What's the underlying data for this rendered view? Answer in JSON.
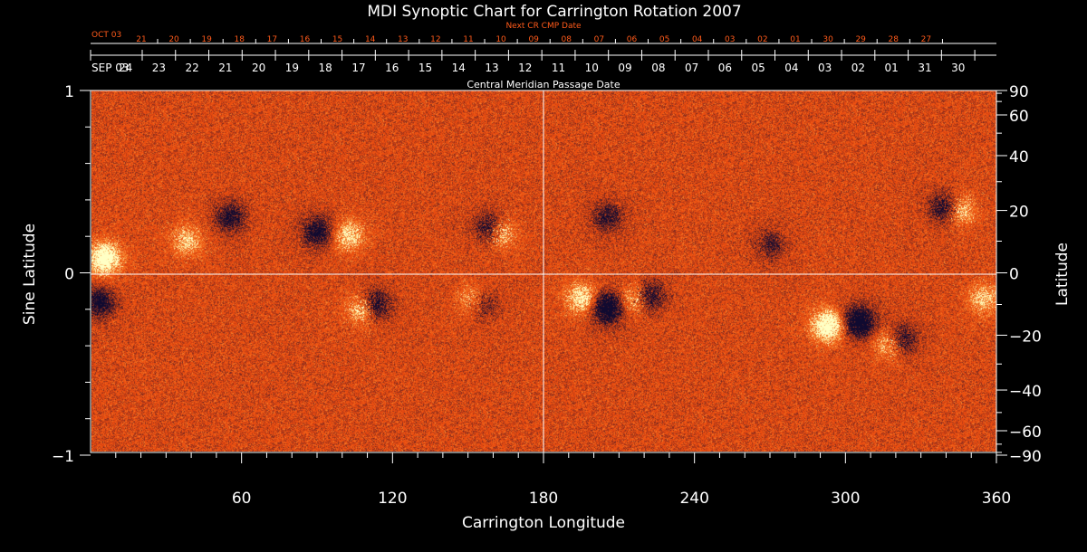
{
  "chart_data": {
    "type": "heatmap",
    "title": "MDI Synoptic Chart for Carrington Rotation 2007",
    "xlabel": "Carrington Longitude",
    "ylabel": "Sine Latitude",
    "ylabel_right": "Latitude",
    "top_axis_label": "Central Meridian Passage Date",
    "next_axis_label": "Next CR CMP Date",
    "xlim": [
      0,
      360
    ],
    "ylim": [
      -1,
      1
    ],
    "x_ticks": [
      "60",
      "120",
      "180",
      "240",
      "300",
      "360"
    ],
    "x_tick_values": [
      60,
      120,
      180,
      240,
      300,
      360
    ],
    "y_ticks": [
      "1",
      "0",
      "−1"
    ],
    "y_tick_values": [
      1,
      0,
      -1
    ],
    "lat_ticks": [
      "90",
      "60",
      "40",
      "20",
      "0",
      "−20",
      "−40",
      "−60",
      "−90"
    ],
    "lat_tick_values": [
      90,
      60,
      40,
      20,
      0,
      -20,
      -40,
      -60,
      -90
    ],
    "cmp_first_label": "SEP 03",
    "cmp_dates": [
      "24",
      "23",
      "22",
      "21",
      "20",
      "19",
      "18",
      "17",
      "16",
      "15",
      "14",
      "13",
      "12",
      "11",
      "10",
      "09",
      "08",
      "07",
      "06",
      "05",
      "04",
      "03",
      "02",
      "01",
      "31",
      "30"
    ],
    "next_first_label": "OCT 03",
    "next_dates": [
      "21",
      "20",
      "19",
      "18",
      "17",
      "16",
      "15",
      "14",
      "13",
      "12",
      "11",
      "10",
      "09",
      "08",
      "07",
      "06",
      "05",
      "04",
      "03",
      "02",
      "01",
      "30",
      "29",
      "28",
      "27"
    ],
    "colors": {
      "background": "#000000",
      "field_base": "#e84a10",
      "positive": "#ffffc0",
      "negative": "#100a30",
      "axis": "#ffffff",
      "next_axis": "#ff5a1a",
      "grid": "#ffffff"
    },
    "active_regions": [
      {
        "lon": 5,
        "sinlat": 0.07,
        "polarity": "positive",
        "strength": 1.0
      },
      {
        "lon": 3,
        "sinlat": -0.17,
        "polarity": "negative",
        "strength": 0.7
      },
      {
        "lon": 38,
        "sinlat": 0.17,
        "polarity": "positive",
        "strength": 0.5
      },
      {
        "lon": 55,
        "sinlat": 0.3,
        "polarity": "negative",
        "strength": 0.6
      },
      {
        "lon": 90,
        "sinlat": 0.22,
        "polarity": "negative",
        "strength": 0.7
      },
      {
        "lon": 102,
        "sinlat": 0.2,
        "polarity": "positive",
        "strength": 0.6
      },
      {
        "lon": 112,
        "sinlat": -0.19,
        "polarity": "negative",
        "strength": 0.9
      },
      {
        "lon": 108,
        "sinlat": -0.21,
        "polarity": "positive",
        "strength": 0.8
      },
      {
        "lon": 159,
        "sinlat": 0.24,
        "polarity": "negative",
        "strength": 0.9
      },
      {
        "lon": 162,
        "sinlat": 0.22,
        "polarity": "positive",
        "strength": 0.8
      },
      {
        "lon": 152,
        "sinlat": -0.16,
        "polarity": "positive",
        "strength": 0.6
      },
      {
        "lon": 155,
        "sinlat": -0.18,
        "polarity": "negative",
        "strength": 0.6
      },
      {
        "lon": 205,
        "sinlat": -0.2,
        "polarity": "negative",
        "strength": 1.0
      },
      {
        "lon": 195,
        "sinlat": -0.15,
        "polarity": "positive",
        "strength": 0.7
      },
      {
        "lon": 221,
        "sinlat": -0.14,
        "polarity": "negative",
        "strength": 0.9
      },
      {
        "lon": 217,
        "sinlat": -0.15,
        "polarity": "positive",
        "strength": 0.8
      },
      {
        "lon": 205,
        "sinlat": 0.3,
        "polarity": "negative",
        "strength": 0.5
      },
      {
        "lon": 293,
        "sinlat": -0.3,
        "polarity": "positive",
        "strength": 1.0
      },
      {
        "lon": 305,
        "sinlat": -0.28,
        "polarity": "negative",
        "strength": 1.0
      },
      {
        "lon": 322,
        "sinlat": -0.38,
        "polarity": "negative",
        "strength": 0.8
      },
      {
        "lon": 318,
        "sinlat": -0.4,
        "polarity": "positive",
        "strength": 0.7
      },
      {
        "lon": 340,
        "sinlat": 0.35,
        "polarity": "negative",
        "strength": 0.8
      },
      {
        "lon": 345,
        "sinlat": 0.34,
        "polarity": "positive",
        "strength": 0.7
      },
      {
        "lon": 270,
        "sinlat": 0.15,
        "polarity": "negative",
        "strength": 0.4
      },
      {
        "lon": 355,
        "sinlat": -0.15,
        "polarity": "positive",
        "strength": 0.5
      }
    ]
  }
}
